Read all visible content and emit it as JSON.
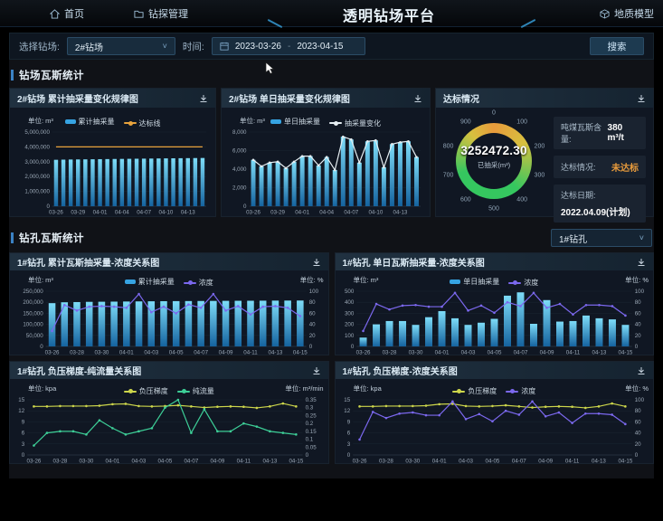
{
  "nav": {
    "home": "首页",
    "drilling_management": "钻探管理",
    "title": "透明钻场平台",
    "geology_model": "地质模型"
  },
  "filter": {
    "site_label": "选择钻场:",
    "site_value": "2#钻场",
    "time_label": "时间:",
    "date_start": "2023-03-26",
    "date_end": "2023-04-15",
    "date_separator": "-",
    "search_label": "搜索"
  },
  "sections": {
    "site_section_title": "钻场瓦斯统计",
    "hole_section_title": "钻孔瓦斯统计",
    "hole_select_value": "1#钻孔"
  },
  "gauge_panel": {
    "title": "达标情况",
    "value": "3252472.30",
    "value_label": "已抽采(m³)",
    "ticks": [
      "0",
      "100",
      "200",
      "300",
      "400",
      "500",
      "600",
      "700",
      "800",
      "900"
    ],
    "ring_colors": [
      "#e89b3c",
      "#d7c13f",
      "#35c75f"
    ],
    "highlight_color": "#e89b3c",
    "stats": [
      {
        "label": "吨煤瓦斯含量:",
        "value": "380 m³/t",
        "highlight": false
      },
      {
        "label": "达标情况:",
        "value": "未达标",
        "highlight": true
      },
      {
        "label": "达标日期:",
        "value": "2022.04.09(计划)",
        "highlight": false
      }
    ]
  },
  "chart_data": [
    {
      "type": "bar",
      "title": "2#钻场 累计抽采量变化规律图",
      "unit_left": "单位: m³",
      "x": [
        "03-26",
        "03-27",
        "03-28",
        "03-29",
        "03-30",
        "03-31",
        "04-01",
        "04-02",
        "04-03",
        "04-04",
        "04-05",
        "04-06",
        "04-07",
        "04-08",
        "04-09",
        "04-10",
        "04-11",
        "04-12",
        "04-13",
        "04-14",
        "04-15"
      ],
      "x_interval": 3,
      "ylim_left": [
        0,
        5000000
      ],
      "yticks_left": [
        "0",
        "1,000,000",
        "2,000,000",
        "3,000,000",
        "4,000,000",
        "5,000,000"
      ],
      "legend": [
        {
          "name": "累计抽采量",
          "color": "#36a3e2",
          "type": "bar"
        },
        {
          "name": "达标线",
          "color": "#e8a33d",
          "type": "line"
        }
      ],
      "series": [
        {
          "name": "累计抽采量",
          "type": "bar",
          "axis": "left",
          "values": [
            3130000,
            3140000,
            3150000,
            3155000,
            3160000,
            3165000,
            3172000,
            3178000,
            3185000,
            3190000,
            3196000,
            3202000,
            3208000,
            3214000,
            3220000,
            3226000,
            3231000,
            3237000,
            3242000,
            3247000,
            3252472
          ]
        },
        {
          "name": "达标线",
          "type": "line",
          "axis": "left",
          "color": "#e8a33d",
          "markers": false,
          "values": [
            4000000,
            4000000,
            4000000,
            4000000,
            4000000,
            4000000,
            4000000,
            4000000,
            4000000,
            4000000,
            4000000,
            4000000,
            4000000,
            4000000,
            4000000,
            4000000,
            4000000,
            4000000,
            4000000,
            4000000,
            4000000
          ]
        }
      ]
    },
    {
      "type": "bar",
      "title": "2#钻场 单日抽采量变化规律图",
      "unit_left": "单位: m³",
      "x": [
        "03-26",
        "03-27",
        "03-28",
        "03-29",
        "03-30",
        "03-31",
        "04-01",
        "04-02",
        "04-03",
        "04-04",
        "04-05",
        "04-06",
        "04-07",
        "04-08",
        "04-09",
        "04-10",
        "04-11",
        "04-12",
        "04-13",
        "04-14",
        "04-15"
      ],
      "x_interval": 3,
      "ylim_left": [
        0,
        8000
      ],
      "yticks_left": [
        "0",
        "2,000",
        "4,000",
        "6,000",
        "8,000"
      ],
      "legend": [
        {
          "name": "单日抽采量",
          "color": "#36a3e2",
          "type": "bar"
        },
        {
          "name": "抽采量变化",
          "color": "#e6eef2",
          "type": "line"
        }
      ],
      "series": [
        {
          "name": "单日抽采量",
          "type": "bar",
          "axis": "left",
          "values": [
            5000,
            4300,
            4700,
            4800,
            4100,
            4800,
            5400,
            5400,
            4400,
            5300,
            3900,
            7500,
            7200,
            4700,
            7000,
            7100,
            4200,
            6700,
            6900,
            7000,
            5300
          ]
        },
        {
          "name": "抽采量变化",
          "type": "line",
          "axis": "left",
          "color": "#e6eef2",
          "markers": true,
          "values": [
            5000,
            4300,
            4700,
            4800,
            4100,
            4800,
            5400,
            5400,
            4400,
            5300,
            3900,
            7500,
            7200,
            4700,
            7000,
            7100,
            4200,
            6700,
            6900,
            7000,
            5300
          ]
        }
      ]
    },
    {
      "type": "bar",
      "title": "1#钻孔 累计瓦斯抽采量-浓度关系图",
      "unit_left": "单位: m³",
      "unit_right": "单位: %",
      "x": [
        "03-26",
        "03-27",
        "03-28",
        "03-29",
        "03-30",
        "03-31",
        "04-01",
        "04-02",
        "04-03",
        "04-04",
        "04-05",
        "04-06",
        "04-07",
        "04-08",
        "04-09",
        "04-10",
        "04-11",
        "04-12",
        "04-13",
        "04-14",
        "04-15"
      ],
      "x_interval": 2,
      "ylim_left": [
        0,
        250000
      ],
      "yticks_left": [
        "0",
        "50,000",
        "100,000",
        "150,000",
        "200,000",
        "250,000"
      ],
      "ylim_right": [
        0,
        100
      ],
      "yticks_right": [
        "0",
        "20",
        "40",
        "60",
        "80",
        "100"
      ],
      "legend": [
        {
          "name": "累计抽采量",
          "color": "#36a3e2",
          "type": "bar"
        },
        {
          "name": "浓度",
          "color": "#7b68ee",
          "type": "line"
        }
      ],
      "series": [
        {
          "name": "累计抽采量",
          "type": "bar",
          "axis": "left",
          "values": [
            196000,
            200000,
            201000,
            202000,
            202500,
            203000,
            203500,
            204000,
            204500,
            205000,
            205300,
            205600,
            205900,
            206200,
            206500,
            206800,
            207000,
            207300,
            207600,
            207800,
            208000
          ]
        },
        {
          "name": "浓度",
          "type": "line",
          "axis": "right",
          "color": "#7b68ee",
          "markers": true,
          "values": [
            28,
            75,
            65,
            72,
            73,
            72,
            70,
            95,
            62,
            72,
            60,
            76,
            70,
            95,
            65,
            73,
            58,
            72,
            73,
            70,
            55
          ]
        }
      ]
    },
    {
      "type": "bar",
      "title": "1#钻孔 单日瓦斯抽采量-浓度关系图",
      "unit_left": "单位: m³",
      "unit_right": "单位: %",
      "x": [
        "03-26",
        "03-27",
        "03-28",
        "03-29",
        "03-30",
        "03-31",
        "04-01",
        "04-02",
        "04-03",
        "04-04",
        "04-05",
        "04-06",
        "04-07",
        "04-08",
        "04-09",
        "04-10",
        "04-11",
        "04-12",
        "04-13",
        "04-14",
        "04-15"
      ],
      "x_interval": 2,
      "ylim_left": [
        0,
        500
      ],
      "yticks_left": [
        "0",
        "100",
        "200",
        "300",
        "400",
        "500"
      ],
      "ylim_right": [
        0,
        100
      ],
      "yticks_right": [
        "0",
        "20",
        "40",
        "60",
        "80",
        "100"
      ],
      "legend": [
        {
          "name": "单日抽采量",
          "color": "#36a3e2",
          "type": "bar"
        },
        {
          "name": "浓度",
          "color": "#7b68ee",
          "type": "line"
        }
      ],
      "series": [
        {
          "name": "单日抽采量",
          "type": "bar",
          "axis": "left",
          "values": [
            80,
            200,
            230,
            230,
            195,
            265,
            320,
            255,
            195,
            215,
            250,
            460,
            490,
            205,
            420,
            225,
            230,
            280,
            255,
            245,
            195
          ]
        },
        {
          "name": "浓度",
          "type": "line",
          "axis": "right",
          "color": "#7b68ee",
          "markers": true,
          "values": [
            28,
            77,
            67,
            74,
            75,
            72,
            72,
            97,
            65,
            74,
            61,
            80,
            73,
            97,
            70,
            77,
            58,
            75,
            75,
            73,
            56
          ]
        }
      ]
    },
    {
      "type": "line",
      "title": "1#钻孔 负压梯度-纯流量关系图",
      "unit_left": "单位: kpa",
      "unit_right": "单位: m³/min",
      "x": [
        "03-26",
        "03-27",
        "03-28",
        "03-29",
        "03-30",
        "03-31",
        "04-01",
        "04-02",
        "04-03",
        "04-04",
        "04-05",
        "04-06",
        "04-07",
        "04-08",
        "04-09",
        "04-10",
        "04-11",
        "04-12",
        "04-13",
        "04-14",
        "04-15"
      ],
      "x_interval": 2,
      "ylim_left": [
        0,
        15
      ],
      "yticks_left": [
        "0",
        "3",
        "6",
        "9",
        "12",
        "15"
      ],
      "ylim_right": [
        0,
        0.35
      ],
      "yticks_right": [
        "0",
        "0.05",
        "0.1",
        "0.15",
        "0.2",
        "0.25",
        "0.3",
        "0.35"
      ],
      "legend": [
        {
          "name": "负压梯度",
          "color": "#cdd64b",
          "type": "line"
        },
        {
          "name": "纯流量",
          "color": "#3dce97",
          "type": "line"
        }
      ],
      "series": [
        {
          "name": "负压梯度",
          "type": "line",
          "axis": "left",
          "color": "#cdd64b",
          "markers": true,
          "values": [
            13.2,
            13.2,
            13.3,
            13.3,
            13.3,
            13.4,
            13.8,
            13.9,
            13.3,
            13.2,
            13.3,
            13.5,
            13.2,
            12.9,
            13.1,
            13.2,
            13.1,
            12.8,
            13.2,
            14.0,
            13.2
          ]
        },
        {
          "name": "纯流量",
          "type": "line",
          "axis": "right",
          "color": "#3dce97",
          "markers": true,
          "values": [
            0.06,
            0.14,
            0.15,
            0.15,
            0.13,
            0.22,
            0.17,
            0.13,
            0.15,
            0.17,
            0.3,
            0.35,
            0.14,
            0.29,
            0.15,
            0.15,
            0.2,
            0.18,
            0.15,
            0.14,
            0.13
          ]
        }
      ]
    },
    {
      "type": "line",
      "title": "1#钻孔 负压梯度-浓度关系图",
      "unit_left": "单位: kpa",
      "unit_right": "单位: %",
      "x": [
        "03-26",
        "03-27",
        "03-28",
        "03-29",
        "03-30",
        "03-31",
        "04-01",
        "04-02",
        "04-03",
        "04-04",
        "04-05",
        "04-06",
        "04-07",
        "04-08",
        "04-09",
        "04-10",
        "04-11",
        "04-12",
        "04-13",
        "04-14",
        "04-15"
      ],
      "x_interval": 2,
      "ylim_left": [
        0,
        15
      ],
      "yticks_left": [
        "0",
        "3",
        "6",
        "9",
        "12",
        "15"
      ],
      "ylim_right": [
        0,
        100
      ],
      "yticks_right": [
        "0",
        "20",
        "40",
        "60",
        "80",
        "100"
      ],
      "legend": [
        {
          "name": "负压梯度",
          "color": "#cdd64b",
          "type": "line"
        },
        {
          "name": "浓度",
          "color": "#7b68ee",
          "type": "line"
        }
      ],
      "series": [
        {
          "name": "负压梯度",
          "type": "line",
          "axis": "left",
          "color": "#cdd64b",
          "markers": true,
          "values": [
            13.2,
            13.2,
            13.3,
            13.3,
            13.3,
            13.4,
            13.8,
            13.9,
            13.3,
            13.2,
            13.3,
            13.5,
            13.2,
            12.9,
            13.1,
            13.2,
            13.1,
            12.8,
            13.2,
            14.0,
            13.2
          ]
        },
        {
          "name": "浓度",
          "type": "line",
          "axis": "right",
          "color": "#7b68ee",
          "markers": true,
          "values": [
            28,
            78,
            67,
            75,
            77,
            72,
            72,
            97,
            65,
            74,
            61,
            80,
            73,
            97,
            70,
            77,
            58,
            75,
            75,
            73,
            56
          ]
        }
      ]
    }
  ]
}
